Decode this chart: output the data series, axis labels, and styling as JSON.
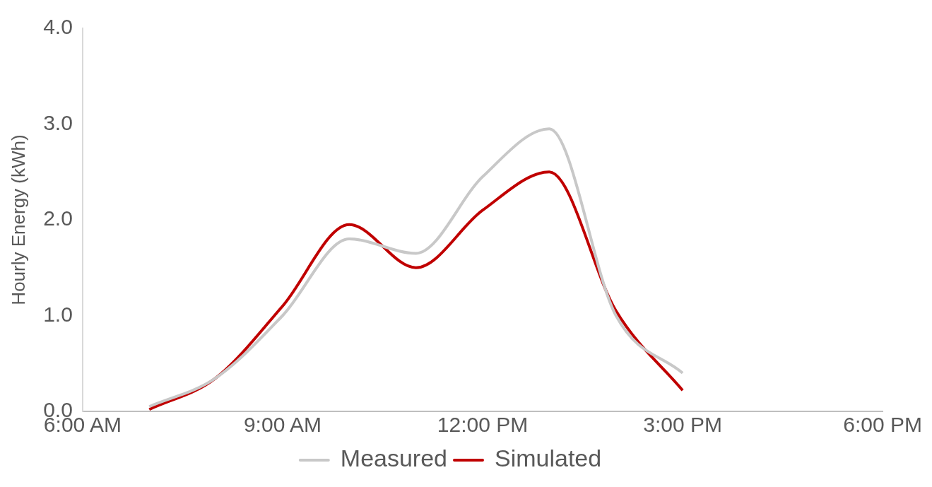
{
  "chart_data": {
    "type": "line",
    "ylabel": "Hourly Energy (kWh)",
    "x": [
      7,
      8,
      9,
      10,
      11,
      12,
      13,
      14,
      15
    ],
    "series": [
      {
        "name": "Measured",
        "color": "#c8c8c8",
        "values": [
          0.05,
          0.35,
          1.0,
          1.8,
          1.65,
          2.45,
          2.95,
          1.0,
          0.4
        ]
      },
      {
        "name": "Simulated",
        "color": "#c00000",
        "values": [
          0.02,
          0.35,
          1.1,
          1.95,
          1.5,
          2.1,
          2.5,
          1.05,
          0.22
        ]
      }
    ],
    "xlim": [
      6,
      18
    ],
    "xticks": [
      {
        "value": 6,
        "label": "6:00 AM"
      },
      {
        "value": 9,
        "label": "9:00 AM"
      },
      {
        "value": 12,
        "label": "12:00 PM"
      },
      {
        "value": 15,
        "label": "3:00 PM"
      },
      {
        "value": 18,
        "label": "6:00 PM"
      }
    ],
    "ylim": [
      0,
      4
    ],
    "yticks": [
      {
        "value": 0,
        "label": "0.0"
      },
      {
        "value": 1,
        "label": "1.0"
      },
      {
        "value": 2,
        "label": "2.0"
      },
      {
        "value": 3,
        "label": "3.0"
      },
      {
        "value": 4,
        "label": "4.0"
      }
    ],
    "grid": false,
    "legend": "bottom",
    "marker": "none",
    "line_style": "solid"
  }
}
